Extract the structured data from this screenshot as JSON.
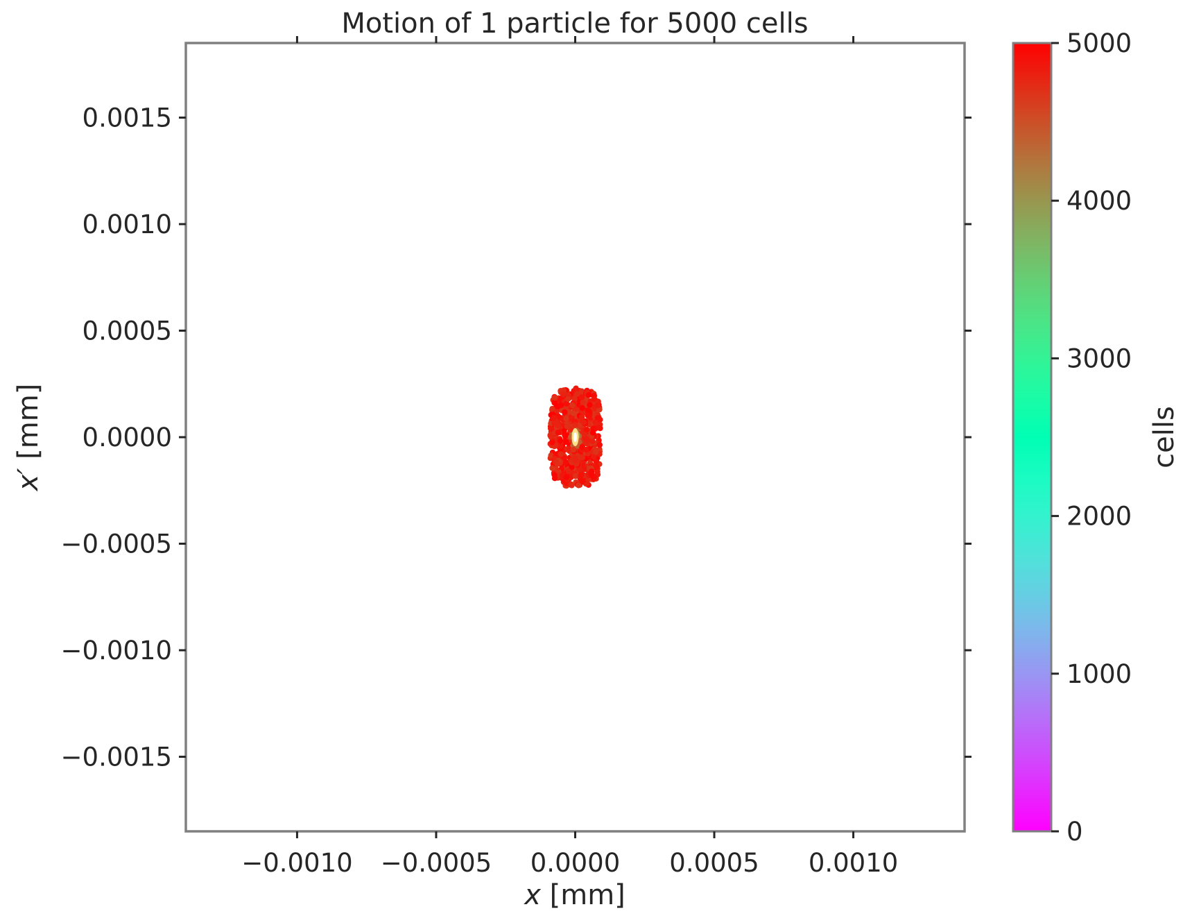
{
  "chart_data": {
    "type": "scatter",
    "title": "Motion of 1 particle for 5000 cells",
    "xlabel_var": "x",
    "xlabel_unit": "[mm]",
    "ylabel_var": "x′",
    "ylabel_unit": "[mm]",
    "xlim": [
      -0.0014,
      0.0014
    ],
    "ylim": [
      -0.00185,
      0.00185
    ],
    "xticks": [
      -0.001,
      -0.0005,
      0.0,
      0.0005,
      0.001
    ],
    "xtick_labels": [
      "−0.0010",
      "−0.0005",
      "0.0000",
      "0.0005",
      "0.0010"
    ],
    "yticks": [
      0.0015,
      0.001,
      0.0005,
      0.0,
      -0.0005,
      -0.001,
      -0.0015
    ],
    "ytick_labels": [
      "0.0015",
      "0.0010",
      "0.0005",
      "0.0000",
      "−0.0005",
      "−0.0010",
      "−0.0015"
    ],
    "grid": false,
    "series": [
      {
        "description_points": "particle positions colored by cell index; cloud spans x about -0.00009 to 0.00009 and x' about -0.00023 to 0.00023, with a small bright core at the origin",
        "x_extent": [
          -9e-05,
          9e-05
        ],
        "y_extent": [
          -0.00023,
          0.00023
        ],
        "center": [
          0.0,
          0.0
        ]
      }
    ],
    "colorbar": {
      "label": "cells",
      "colormap": "rainbow",
      "range": [
        0,
        5000
      ],
      "ticks": [
        0,
        1000,
        2000,
        3000,
        4000,
        5000
      ],
      "tick_labels": [
        "0",
        "1000",
        "2000",
        "3000",
        "4000",
        "5000"
      ]
    },
    "colors": {
      "frame": "#808080",
      "tick": "#262626",
      "text": "#262626"
    }
  }
}
